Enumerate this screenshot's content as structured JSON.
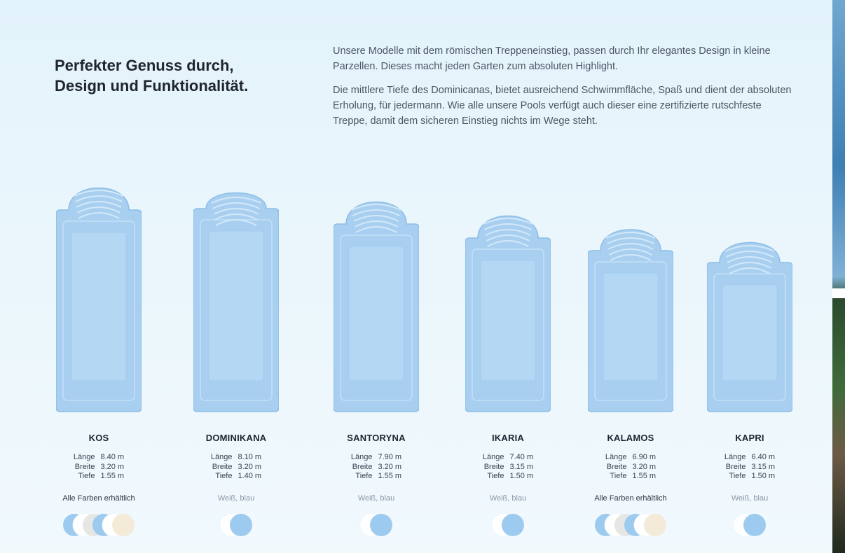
{
  "headline": {
    "line1": "Perfekter Genuss durch,",
    "line2": "Design und Funktionalität."
  },
  "intro": {
    "p1": "Unsere Modelle mit dem römischen Treppeneinstieg, passen durch Ihr elegantes Design in kleine Parzellen. Dieses macht jeden Garten zum absoluten Highlight.",
    "p2": "Die mittlere Tiefe des Dominicanas, bietet ausreichend Schwimmfläche, Spaß und dient der absoluten Erholung, für jedermann. Wie alle unsere Pools verfügt auch dieser eine zertifizierte rutschfeste Treppe, damit dem sicheren Einstieg nichts im Wege steht."
  },
  "spec_labels": {
    "length": "Länge",
    "width": "Breite",
    "depth": "Tiefe"
  },
  "colors": {
    "blue": "#9dcbef",
    "white": "#ffffff",
    "grey": "#e6e6e4",
    "sand": "#f3ead8",
    "pool_fill": "#a9cff0",
    "pool_edge": "#8dbde6"
  },
  "models": [
    {
      "name": "KOS",
      "length": "8.40 m",
      "width": "3.20 m",
      "depth": "1.55 m",
      "colors_text": "Alle Farben erhältlich",
      "swatches": [
        "blue",
        "white",
        "grey",
        "blue",
        "white",
        "sand"
      ]
    },
    {
      "name": "DOMINIKANA",
      "length": "8.10 m",
      "width": "3.20 m",
      "depth": "1.40 m",
      "colors_text": "Weiß, blau",
      "swatches": [
        "white",
        "blue"
      ]
    },
    {
      "name": "SANTORYNA",
      "length": "7.90 m",
      "width": "3.20 m",
      "depth": "1.55 m",
      "colors_text": "Weiß, blau",
      "swatches": [
        "white",
        "blue"
      ]
    },
    {
      "name": "IKARIA",
      "length": "7.40 m",
      "width": "3.15 m",
      "depth": "1.50 m",
      "colors_text": "Weiß, blau",
      "swatches": [
        "white",
        "blue"
      ]
    },
    {
      "name": "KALAMOS",
      "length": "6.90 m",
      "width": "3.20 m",
      "depth": "1.55 m",
      "colors_text": "Alle Farben erhältlich",
      "swatches": [
        "blue",
        "white",
        "grey",
        "blue",
        "white",
        "sand"
      ]
    },
    {
      "name": "KAPRI",
      "length": "6.40 m",
      "width": "3.15 m",
      "depth": "1.50 m",
      "colors_text": "Weiß, blau",
      "swatches": [
        "white",
        "blue"
      ]
    }
  ]
}
